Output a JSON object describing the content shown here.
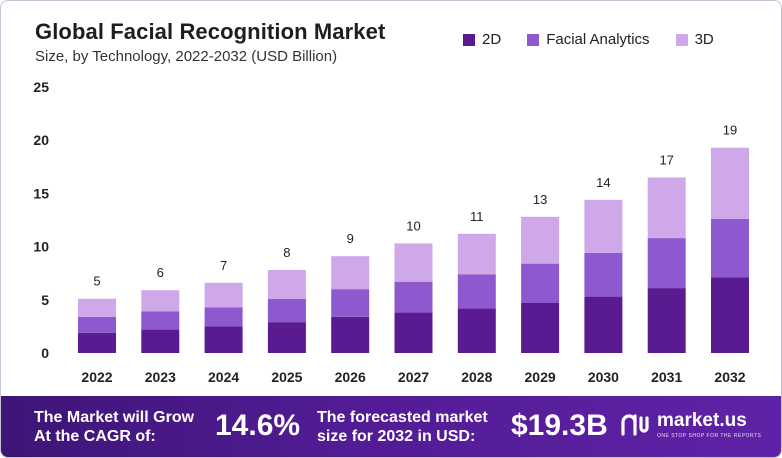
{
  "header": {
    "title": "Global Facial Recognition Market",
    "subtitle": "Size, by Technology, 2022-2032 (USD Billion)"
  },
  "colors": {
    "series_2d": "#5a1b91",
    "series_facial_analytics": "#8e58cf",
    "series_3d": "#cfa8ea",
    "banner": "#4f1c90"
  },
  "chart_data": {
    "type": "bar",
    "stacked": true,
    "title": "Global Facial Recognition Market",
    "subtitle": "Size, by Technology, 2022-2032 (USD Billion)",
    "xlabel": "",
    "ylabel": "",
    "ylim": [
      0,
      25
    ],
    "yticks": [
      "0",
      "5",
      "10",
      "15",
      "20",
      "25"
    ],
    "grid": false,
    "legend": "top-right",
    "categories": [
      "2022",
      "2023",
      "2024",
      "2025",
      "2026",
      "2027",
      "2028",
      "2029",
      "2030",
      "2031",
      "2032"
    ],
    "series": [
      {
        "name": "2D",
        "values": [
          1.9,
          2.2,
          2.5,
          2.9,
          3.4,
          3.8,
          4.2,
          4.7,
          5.3,
          6.1,
          7.1
        ]
      },
      {
        "name": "Facial Analytics",
        "values": [
          1.5,
          1.7,
          1.8,
          2.2,
          2.6,
          2.9,
          3.2,
          3.7,
          4.1,
          4.7,
          5.5
        ]
      },
      {
        "name": "3D",
        "values": [
          1.7,
          2.0,
          2.3,
          2.7,
          3.1,
          3.6,
          3.8,
          4.4,
          5.0,
          5.7,
          6.7
        ]
      }
    ],
    "totals": [
      5.1,
      5.9,
      6.6,
      7.8,
      9.1,
      10.3,
      11.2,
      12.8,
      14.4,
      16.5,
      19.3
    ],
    "total_labels": [
      "5",
      "6",
      "7",
      "8",
      "9",
      "10",
      "11",
      "13",
      "14",
      "17",
      "19"
    ]
  },
  "banner": {
    "cagr_text_line1": "The Market will Grow",
    "cagr_text_line2": "At the CAGR of:",
    "cagr_value": "14.6%",
    "forecast_text_line1": "The forecasted market",
    "forecast_text_line2": "size for 2032 in USD:",
    "forecast_value": "$19.3B",
    "logo_name": "market.us",
    "logo_tagline": "ONE STOP SHOP FOR THE REPORTS",
    "logo_icon": "market-us-logo-icon"
  }
}
